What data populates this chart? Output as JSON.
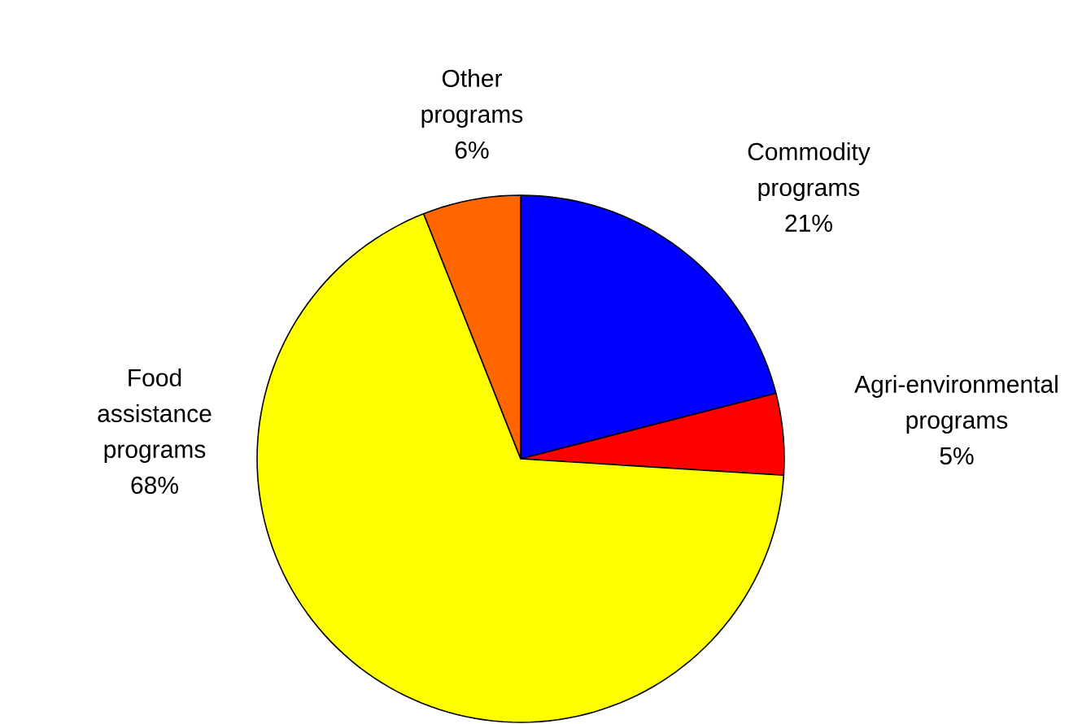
{
  "chart_data": {
    "type": "pie",
    "categories": [
      "Commodity programs",
      "Agri-environmental programs",
      "Food assistance programs",
      "Other programs"
    ],
    "values": [
      21,
      5,
      68,
      6
    ],
    "value_labels": [
      "21%",
      "5%",
      "68%",
      "6%"
    ],
    "colors": [
      "#0000ff",
      "#ff0000",
      "#ffff00",
      "#ff6600"
    ]
  }
}
